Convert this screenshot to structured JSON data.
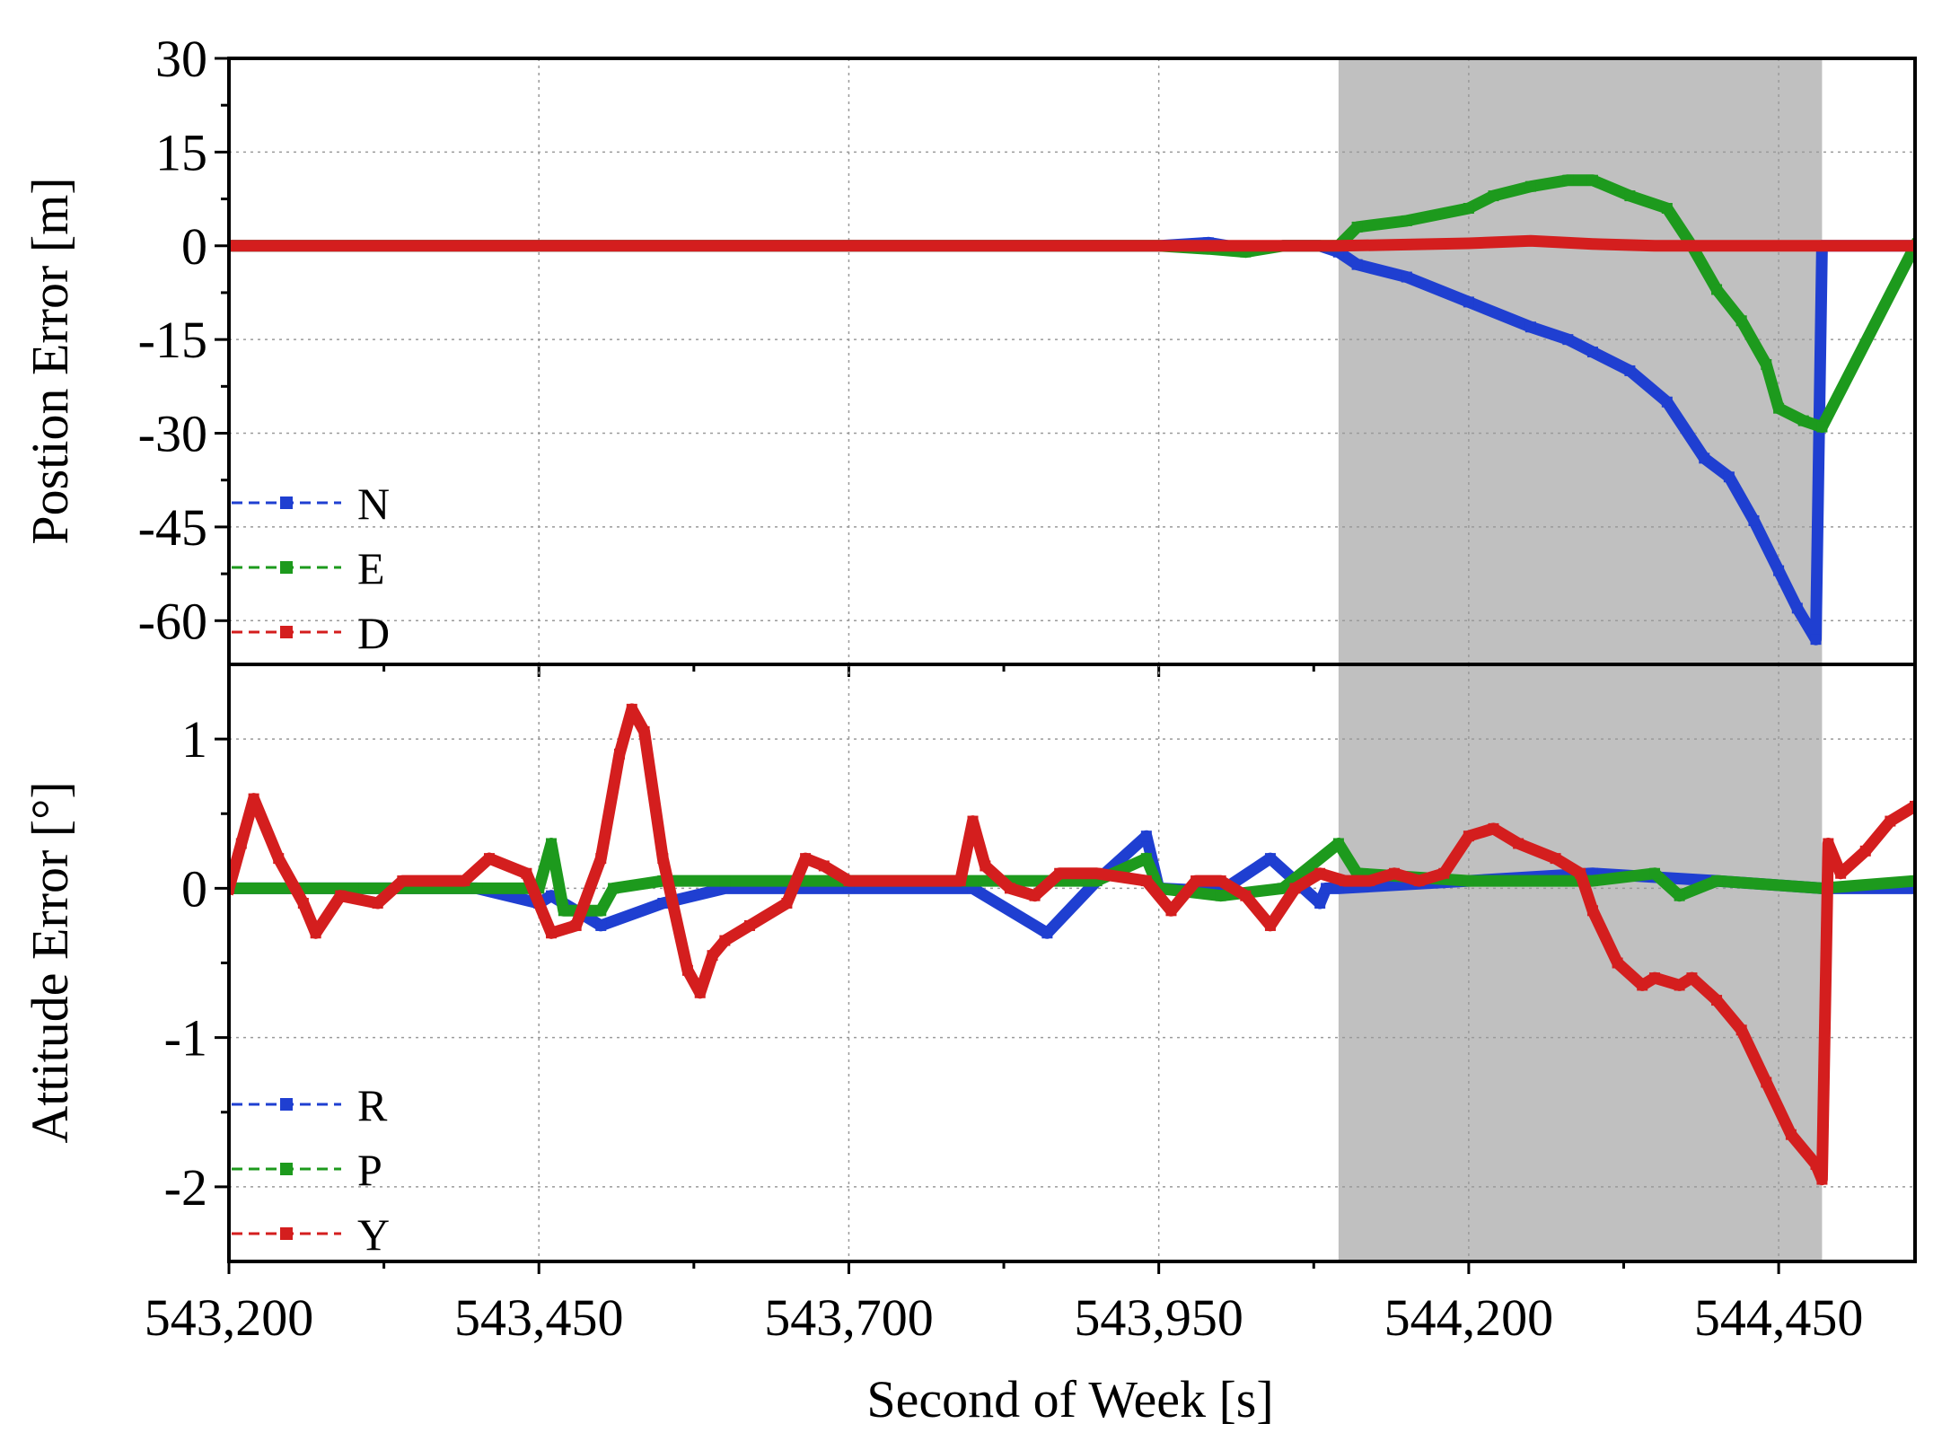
{
  "chart_data": [
    {
      "type": "line",
      "panel": "top",
      "ylabel": "Postion Error [m]",
      "xlabel": "",
      "ylim": [
        -67,
        30
      ],
      "yticks": [
        30,
        15,
        0,
        -15,
        -30,
        -45,
        -60
      ],
      "ytick_labels": [
        "30",
        "15",
        "0",
        "-15",
        "-30",
        "-45",
        "-60"
      ],
      "xlim": [
        543200,
        544560
      ],
      "grid": true,
      "legend_placement": "bottom-left",
      "shaded_interval": [
        544095,
        544485
      ],
      "series": [
        {
          "name": "N",
          "color": "#1f3fd1",
          "x": [
            543200,
            543300,
            543400,
            543500,
            543600,
            543700,
            543800,
            543900,
            543950,
            543990,
            544020,
            544050,
            544080,
            544095,
            544110,
            544150,
            544200,
            544250,
            544280,
            544300,
            544330,
            544360,
            544390,
            544410,
            544430,
            544450,
            544465,
            544480,
            544485,
            544560
          ],
          "y": [
            0,
            0,
            0,
            0,
            0,
            0,
            0,
            0,
            0,
            0.5,
            -0.5,
            0,
            0,
            -1,
            -3,
            -5,
            -9,
            -13,
            -15,
            -17,
            -20,
            -25,
            -34,
            -37,
            -44,
            -52,
            -58,
            -63,
            0,
            0
          ]
        },
        {
          "name": "E",
          "color": "#1d9a1d",
          "x": [
            543200,
            543300,
            543400,
            543500,
            543600,
            543700,
            543800,
            543900,
            543950,
            543990,
            544020,
            544050,
            544080,
            544095,
            544110,
            544150,
            544200,
            544220,
            544250,
            544280,
            544300,
            544330,
            544360,
            544380,
            544400,
            544420,
            544440,
            544450,
            544470,
            544485,
            544560
          ],
          "y": [
            0,
            0,
            0,
            0,
            0,
            0,
            0,
            0,
            0,
            -0.5,
            -1,
            0,
            0,
            0,
            3,
            4,
            6,
            8,
            9.5,
            10.5,
            10.5,
            8,
            6,
            0,
            -7,
            -12,
            -19,
            -26,
            -28,
            -29,
            0
          ]
        },
        {
          "name": "D",
          "color": "#d41e1e",
          "x": [
            543200,
            543300,
            543400,
            543500,
            543600,
            543700,
            543800,
            543900,
            544000,
            544095,
            544150,
            544200,
            544250,
            544300,
            544350,
            544400,
            544450,
            544485,
            544560
          ],
          "y": [
            0,
            0,
            0,
            0,
            0,
            0,
            0,
            0,
            0,
            0,
            0.2,
            0.4,
            0.8,
            0.3,
            0,
            0,
            0,
            0,
            0
          ]
        }
      ]
    },
    {
      "type": "line",
      "panel": "bottom",
      "ylabel": "Attitude Error [°]",
      "xlabel": "Second of Week [s]",
      "ylim": [
        -2.5,
        1.5
      ],
      "yticks": [
        1,
        0,
        -1,
        -2
      ],
      "ytick_labels": [
        "1",
        "0",
        "-1",
        "-2"
      ],
      "xlim": [
        543200,
        544560
      ],
      "xticks": [
        543200,
        543450,
        543700,
        543950,
        544200,
        544450
      ],
      "xtick_labels": [
        "543,200",
        "543,450",
        "543,700",
        "543,950",
        "544,200",
        "544,450"
      ],
      "grid": true,
      "legend_placement": "bottom-left",
      "shaded_interval": [
        544095,
        544485
      ],
      "series": [
        {
          "name": "R",
          "color": "#1f3fd1",
          "x": [
            543200,
            543300,
            543400,
            543450,
            543460,
            543500,
            543550,
            543600,
            543700,
            543800,
            543860,
            543900,
            543940,
            543950,
            544000,
            544040,
            544080,
            544085,
            544095,
            544200,
            544300,
            544400,
            544485,
            544560
          ],
          "y": [
            0,
            0,
            0,
            -0.1,
            -0.05,
            -0.25,
            -0.1,
            0,
            0,
            0,
            -0.3,
            0.05,
            0.35,
            0,
            -0.02,
            0.2,
            -0.1,
            0,
            0,
            0.05,
            0.1,
            0.05,
            0,
            0
          ]
        },
        {
          "name": "P",
          "color": "#1d9a1d",
          "x": [
            543200,
            543300,
            543400,
            543450,
            543460,
            543470,
            543500,
            543510,
            543550,
            543600,
            543700,
            543800,
            543900,
            543940,
            543950,
            544000,
            544050,
            544095,
            544110,
            544200,
            544300,
            544350,
            544370,
            544400,
            544485,
            544560
          ],
          "y": [
            0,
            0,
            0,
            0,
            0.3,
            -0.15,
            -0.15,
            0,
            0.05,
            0.05,
            0.05,
            0.05,
            0.05,
            0.2,
            0,
            -0.05,
            0,
            0.3,
            0.1,
            0.05,
            0.05,
            0.1,
            -0.05,
            0.05,
            0,
            0.05
          ]
        },
        {
          "name": "Y",
          "color": "#d41e1e",
          "x": [
            543200,
            543210,
            543220,
            543240,
            543260,
            543270,
            543290,
            543320,
            543340,
            543360,
            543390,
            543410,
            543440,
            543460,
            543480,
            543500,
            543515,
            543525,
            543535,
            543550,
            543570,
            543580,
            543590,
            543600,
            543620,
            543650,
            543665,
            543680,
            543700,
            543750,
            543790,
            543800,
            543810,
            543830,
            543850,
            543870,
            543900,
            543940,
            543960,
            543980,
            544000,
            544020,
            544040,
            544060,
            544080,
            544100,
            544120,
            544140,
            544160,
            544180,
            544200,
            544220,
            544240,
            544270,
            544290,
            544300,
            544320,
            544340,
            544350,
            544370,
            544380,
            544400,
            544420,
            544440,
            544460,
            544480,
            544485,
            544490,
            544500,
            544520,
            544540,
            544560
          ],
          "y": [
            0,
            0.3,
            0.6,
            0.2,
            -0.1,
            -0.3,
            -0.05,
            -0.1,
            0.05,
            0.05,
            0.05,
            0.2,
            0.1,
            -0.3,
            -0.25,
            0.2,
            0.9,
            1.2,
            1.05,
            0.2,
            -0.55,
            -0.7,
            -0.45,
            -0.35,
            -0.25,
            -0.1,
            0.2,
            0.15,
            0.05,
            0.05,
            0.05,
            0.45,
            0.15,
            0,
            -0.05,
            0.1,
            0.1,
            0.05,
            -0.15,
            0.05,
            0.05,
            -0.05,
            -0.25,
            0,
            0.1,
            0.05,
            0.05,
            0.1,
            0.05,
            0.1,
            0.35,
            0.4,
            0.3,
            0.2,
            0.1,
            -0.15,
            -0.5,
            -0.65,
            -0.6,
            -0.65,
            -0.6,
            -0.75,
            -0.95,
            -1.3,
            -1.65,
            -1.85,
            -1.95,
            0.3,
            0.1,
            0.25,
            0.45,
            0.55
          ]
        }
      ]
    }
  ]
}
